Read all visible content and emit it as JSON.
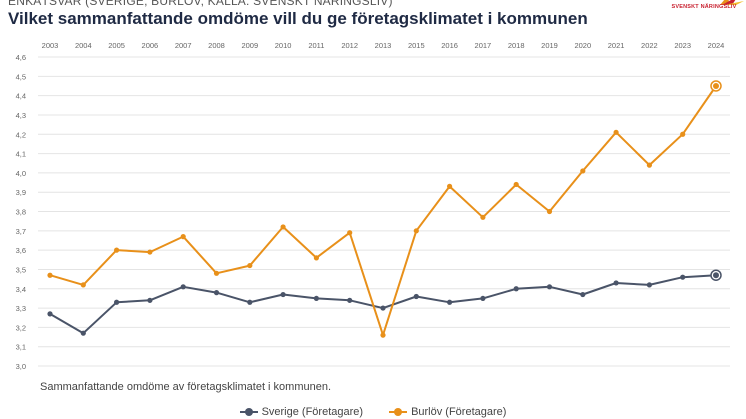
{
  "header": {
    "subtitle": "ENKÄTSVAR (SVERIGE, BURLÖV, KÄLLA: SVENSKT NÄRINGSLIV)",
    "title": "Vilket sammanfattande omdöme vill du ge företagsklimatet i kommunen",
    "logo_text": "SVENSKT NÄRINGSLIV"
  },
  "caption": "Sammanfattande omdöme av företagsklimatet i kommunen.",
  "colors": {
    "sverige": "#4a5468",
    "burlov": "#e8901a",
    "grid": "#e4e4e4",
    "axis_text": "#666666",
    "logo": "#c8202f"
  },
  "chart_data": {
    "type": "line",
    "categories": [
      "2003",
      "2004",
      "2005",
      "2006",
      "2007",
      "2008",
      "2009",
      "2010",
      "2011",
      "2012",
      "2013",
      "2015",
      "2016",
      "2017",
      "2018",
      "2019",
      "2020",
      "2021",
      "2022",
      "2023",
      "2024"
    ],
    "ylim": [
      3.0,
      4.6
    ],
    "yticks": [
      3.0,
      3.1,
      3.2,
      3.3,
      3.4,
      3.5,
      3.6,
      3.7,
      3.8,
      3.9,
      4.0,
      4.1,
      4.2,
      4.3,
      4.4,
      4.5,
      4.6
    ],
    "ytick_labels": [
      "3,0",
      "3,1",
      "3,2",
      "3,3",
      "3,4",
      "3,5",
      "3,6",
      "3,7",
      "3,8",
      "3,9",
      "4,0",
      "4,1",
      "4,2",
      "4,3",
      "4,4",
      "4,5",
      "4,6"
    ],
    "xaxis_position": "top",
    "grid": true,
    "legend_position": "bottom",
    "series": [
      {
        "name": "Sverige (Företagare)",
        "color_key": "sverige",
        "values": [
          3.27,
          3.17,
          3.33,
          3.34,
          3.41,
          3.38,
          3.33,
          3.37,
          3.35,
          3.34,
          3.3,
          3.36,
          3.33,
          3.35,
          3.4,
          3.41,
          3.37,
          3.43,
          3.42,
          3.46,
          3.47
        ]
      },
      {
        "name": "Burlöv (Företagare)",
        "color_key": "burlov",
        "values": [
          3.47,
          3.42,
          3.6,
          3.59,
          3.67,
          3.48,
          3.52,
          3.72,
          3.56,
          3.69,
          3.16,
          3.7,
          3.93,
          3.77,
          3.94,
          3.8,
          4.01,
          4.21,
          4.04,
          4.2,
          4.45
        ]
      }
    ]
  }
}
